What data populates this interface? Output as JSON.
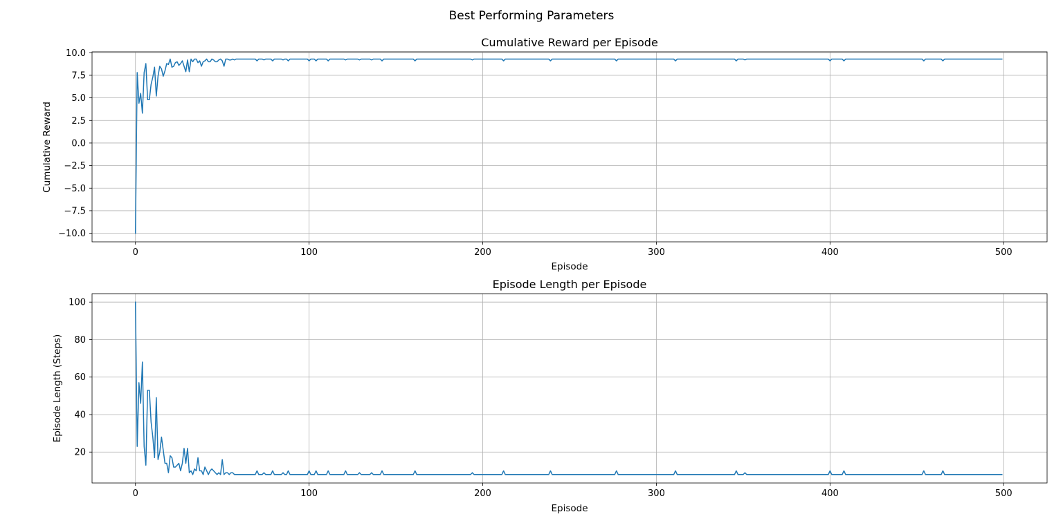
{
  "figure_title": "Best Performing Parameters",
  "colors": {
    "line": "#1f77b4",
    "grid": "#b0b0b0"
  },
  "chart_data": [
    {
      "type": "line",
      "title": "Cumulative Reward per Episode",
      "xlabel": "Episode",
      "ylabel": "Cumulative Reward",
      "xlim": [
        -25,
        525
      ],
      "ylim": [
        -10.95,
        10.1
      ],
      "xticks": [
        0,
        100,
        200,
        300,
        400,
        500
      ],
      "xtick_labels": [
        "0",
        "100",
        "200",
        "300",
        "400",
        "500"
      ],
      "yticks": [
        10,
        7.5,
        5,
        2.5,
        0,
        -2.5,
        -5,
        -7.5,
        -10
      ],
      "ytick_labels": [
        "10.0",
        "7.5",
        "5.0",
        "2.5",
        "0.0",
        "−2.5",
        "−5.0",
        "−7.5",
        "−10.0"
      ],
      "grid": true,
      "series": [
        {
          "x_start": 0,
          "steady_value": 9.3,
          "head": [
            -10.0,
            7.8,
            4.4,
            5.5,
            3.3,
            7.8,
            8.8,
            4.8,
            4.8,
            6.5,
            7.3,
            8.4,
            5.2,
            7.4,
            8.5,
            8.2,
            7.4,
            8.0,
            8.8,
            8.7,
            9.3,
            8.4,
            8.5,
            8.9,
            9.0,
            8.6,
            8.8,
            9.1,
            8.5,
            7.9,
            9.2,
            7.9,
            9.3,
            9.0,
            9.3,
            9.3,
            8.9,
            9.1,
            8.5,
            9.0,
            9.1,
            9.3,
            9.0,
            9.0,
            9.3,
            9.2,
            9.0,
            9.0,
            9.2,
            9.3,
            9.1,
            8.5,
            9.3,
            9.3,
            9.2,
            9.2,
            9.3,
            9.2
          ],
          "dips": [
            [
              70,
              9.1
            ],
            [
              74,
              9.2
            ],
            [
              79,
              9.1
            ],
            [
              85,
              9.2
            ],
            [
              88,
              9.1
            ],
            [
              100,
              9.1
            ],
            [
              104,
              9.1
            ],
            [
              111,
              9.1
            ],
            [
              121,
              9.2
            ],
            [
              129,
              9.2
            ],
            [
              136,
              9.2
            ],
            [
              142,
              9.1
            ],
            [
              161,
              9.1
            ],
            [
              194,
              9.2
            ],
            [
              212,
              9.1
            ],
            [
              239,
              9.1
            ],
            [
              277,
              9.1
            ],
            [
              311,
              9.1
            ],
            [
              346,
              9.1
            ],
            [
              351,
              9.2
            ],
            [
              400,
              9.1
            ],
            [
              408,
              9.1
            ],
            [
              454,
              9.1
            ],
            [
              465,
              9.1
            ]
          ],
          "length": 500
        }
      ]
    },
    {
      "type": "line",
      "title": "Episode Length per Episode",
      "xlabel": "Episode",
      "ylabel": "Episode Length (Steps)",
      "xlim": [
        -25,
        525
      ],
      "ylim": [
        3.5,
        104.5
      ],
      "xticks": [
        0,
        100,
        200,
        300,
        400,
        500
      ],
      "xtick_labels": [
        "0",
        "100",
        "200",
        "300",
        "400",
        "500"
      ],
      "yticks": [
        100,
        80,
        60,
        40,
        20
      ],
      "ytick_labels": [
        "100",
        "80",
        "60",
        "40",
        "20"
      ],
      "grid": true,
      "series": [
        {
          "x_start": 0,
          "steady_value": 8,
          "head": [
            100,
            23,
            57,
            46,
            68,
            23,
            13,
            53,
            53,
            36,
            28,
            17,
            49,
            16,
            20,
            28,
            21,
            14,
            14,
            9,
            18,
            17,
            12,
            12,
            13,
            14,
            10,
            14,
            22,
            14,
            22,
            9,
            10,
            8,
            11,
            10,
            17,
            10,
            10,
            8,
            12,
            10,
            8,
            10,
            11,
            10,
            9,
            8,
            9,
            8,
            16,
            8,
            9,
            9,
            8,
            9,
            9,
            8
          ],
          "dips": [
            [
              70,
              10
            ],
            [
              74,
              9
            ],
            [
              79,
              10
            ],
            [
              85,
              9
            ],
            [
              88,
              10
            ],
            [
              100,
              10
            ],
            [
              104,
              10
            ],
            [
              111,
              10
            ],
            [
              121,
              10
            ],
            [
              129,
              9
            ],
            [
              136,
              9
            ],
            [
              142,
              10
            ],
            [
              161,
              10
            ],
            [
              194,
              9
            ],
            [
              212,
              10
            ],
            [
              239,
              10
            ],
            [
              277,
              10
            ],
            [
              311,
              10
            ],
            [
              346,
              10
            ],
            [
              351,
              9
            ],
            [
              400,
              10
            ],
            [
              408,
              10
            ],
            [
              454,
              10
            ],
            [
              465,
              10
            ]
          ],
          "length": 500
        }
      ]
    }
  ]
}
